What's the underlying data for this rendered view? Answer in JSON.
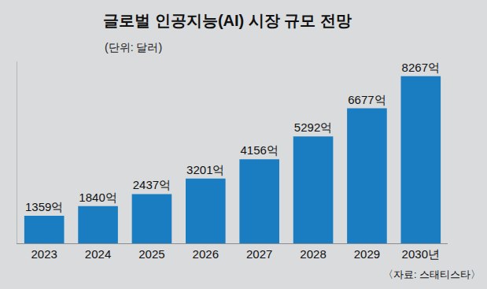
{
  "chart_data": {
    "type": "bar",
    "title": "글로벌 인공지능(AI) 시장 규모 전망",
    "subtitle": "(단위: 달러)",
    "categories": [
      "2023",
      "2024",
      "2025",
      "2026",
      "2027",
      "2028",
      "2029",
      "2030년"
    ],
    "values": [
      1359,
      1840,
      2437,
      3201,
      4156,
      5292,
      6677,
      8267
    ],
    "value_labels": [
      "1359억",
      "1840억",
      "2437억",
      "3201억",
      "4156억",
      "5292억",
      "6677억",
      "8267억"
    ],
    "color": "#1a7cc1",
    "ylim": [
      0,
      9000
    ],
    "yticks": [],
    "grid": false,
    "data_labels": true,
    "tick_labels": "x",
    "source": "〈자료: 스태티스타〉"
  }
}
